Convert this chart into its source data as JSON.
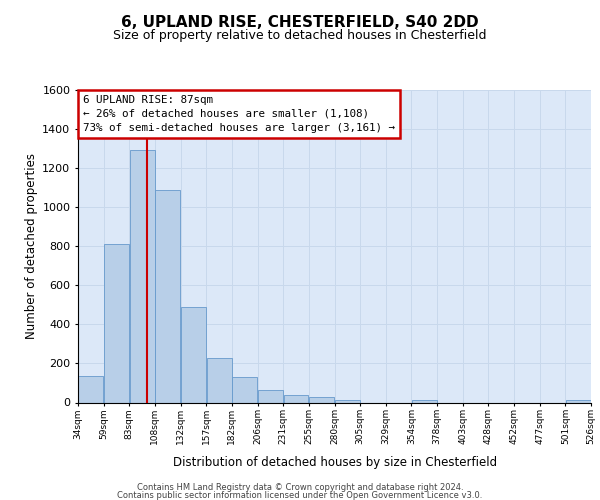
{
  "title1": "6, UPLAND RISE, CHESTERFIELD, S40 2DD",
  "title2": "Size of property relative to detached houses in Chesterfield",
  "xlabel": "Distribution of detached houses by size in Chesterfield",
  "ylabel": "Number of detached properties",
  "bar_values": [
    135,
    810,
    1295,
    1090,
    490,
    230,
    130,
    65,
    40,
    28,
    15,
    0,
    0,
    15,
    0,
    0,
    0,
    0,
    0,
    15
  ],
  "bar_color": "#b8cfe8",
  "bar_edge_color": "#6699cc",
  "vline_position": 2.18,
  "vline_color": "#cc0000",
  "annotation_text": "6 UPLAND RISE: 87sqm\n← 26% of detached houses are smaller (1,108)\n73% of semi-detached houses are larger (3,161) →",
  "annotation_facecolor": "#ffffff",
  "annotation_edgecolor": "#cc0000",
  "ylim_max": 1600,
  "yticks": [
    0,
    200,
    400,
    600,
    800,
    1000,
    1200,
    1400,
    1600
  ],
  "xtick_labels": [
    "34sqm",
    "59sqm",
    "83sqm",
    "108sqm",
    "132sqm",
    "157sqm",
    "182sqm",
    "206sqm",
    "231sqm",
    "255sqm",
    "280sqm",
    "305sqm",
    "329sqm",
    "354sqm",
    "378sqm",
    "403sqm",
    "428sqm",
    "452sqm",
    "477sqm",
    "501sqm",
    "526sqm"
  ],
  "grid_color": "#c8d8ec",
  "bg_color": "#dce8f8",
  "footer_line1": "Contains HM Land Registry data © Crown copyright and database right 2024.",
  "footer_line2": "Contains public sector information licensed under the Open Government Licence v3.0."
}
